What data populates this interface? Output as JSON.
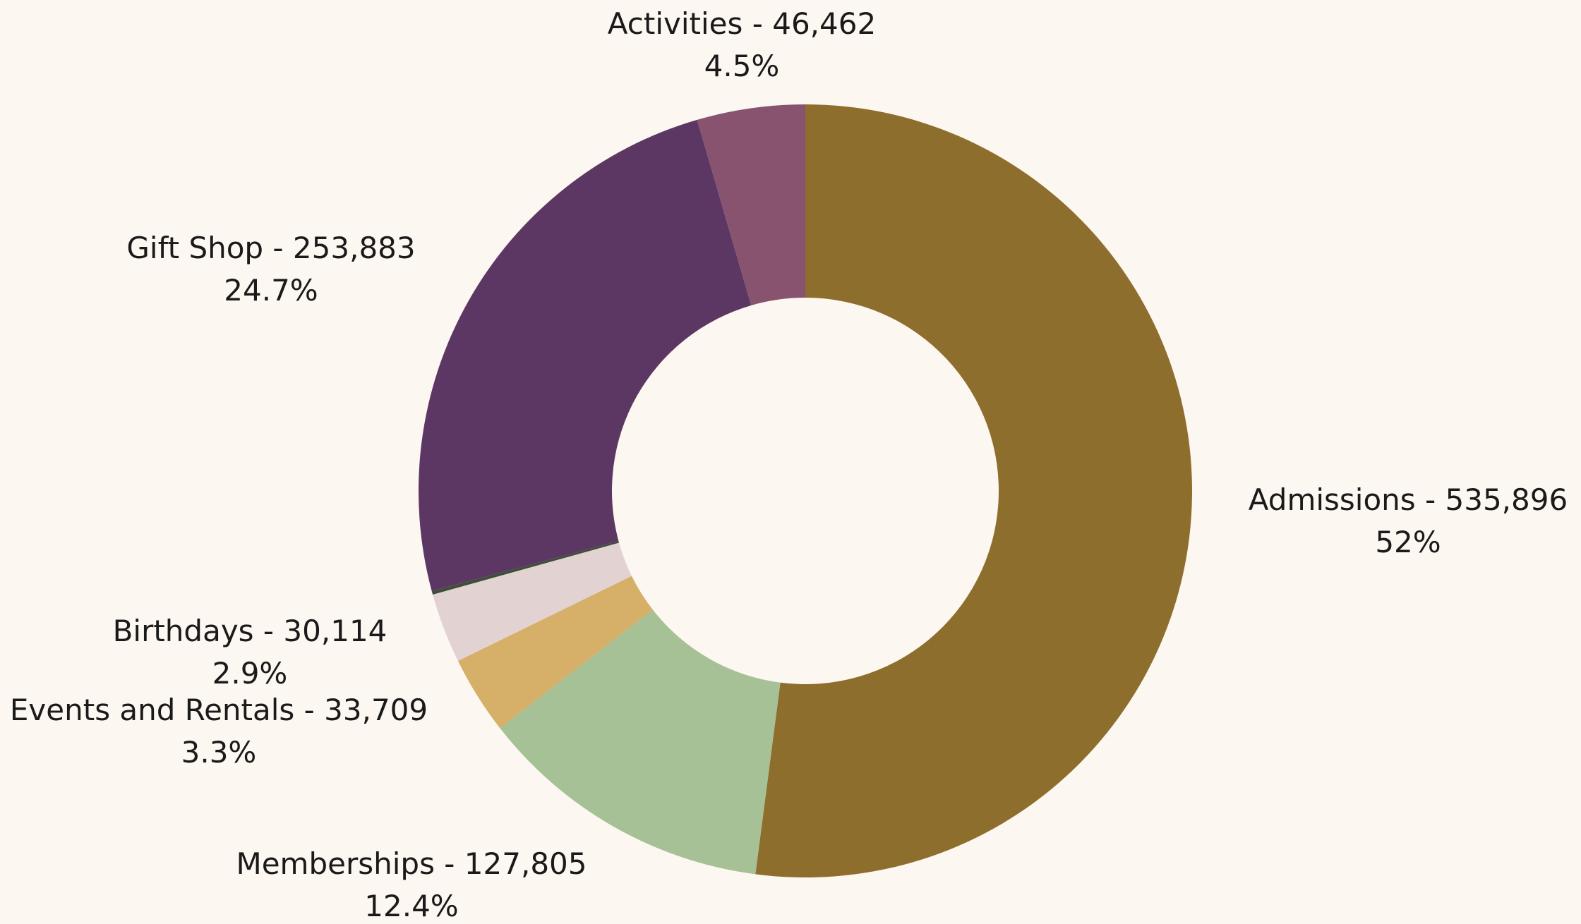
{
  "chart_data": {
    "type": "pie",
    "donut": true,
    "start_angle_deg": 0,
    "direction": "clockwise",
    "slices": [
      {
        "label": "Admissions - 535,896",
        "name": "Admissions",
        "value": 535896,
        "percent_label": "52%",
        "color": "#8e6e2d"
      },
      {
        "label": "Memberships - 127,805",
        "name": "Memberships",
        "value": 127805,
        "percent_label": "12.4%",
        "color": "#a6c195"
      },
      {
        "label": "Events and Rentals - 33,709",
        "name": "Events and Rentals",
        "value": 33709,
        "percent_label": "3.3%",
        "color": "#d6af68"
      },
      {
        "label": "Birthdays - 30,114",
        "name": "Birthdays",
        "value": 30114,
        "percent_label": "2.9%",
        "color": "#e2d2d2"
      },
      {
        "label": "",
        "name": "",
        "value": 1500,
        "percent_label": "",
        "color": "#3d4f36"
      },
      {
        "label": "Gift Shop - 253,883",
        "name": "Gift Shop",
        "value": 253883,
        "percent_label": "24.7%",
        "color": "#5d3763"
      },
      {
        "label": "Activities - 46,462",
        "name": "Activities",
        "value": 46462,
        "percent_label": "4.5%",
        "color": "#87536f"
      }
    ]
  }
}
